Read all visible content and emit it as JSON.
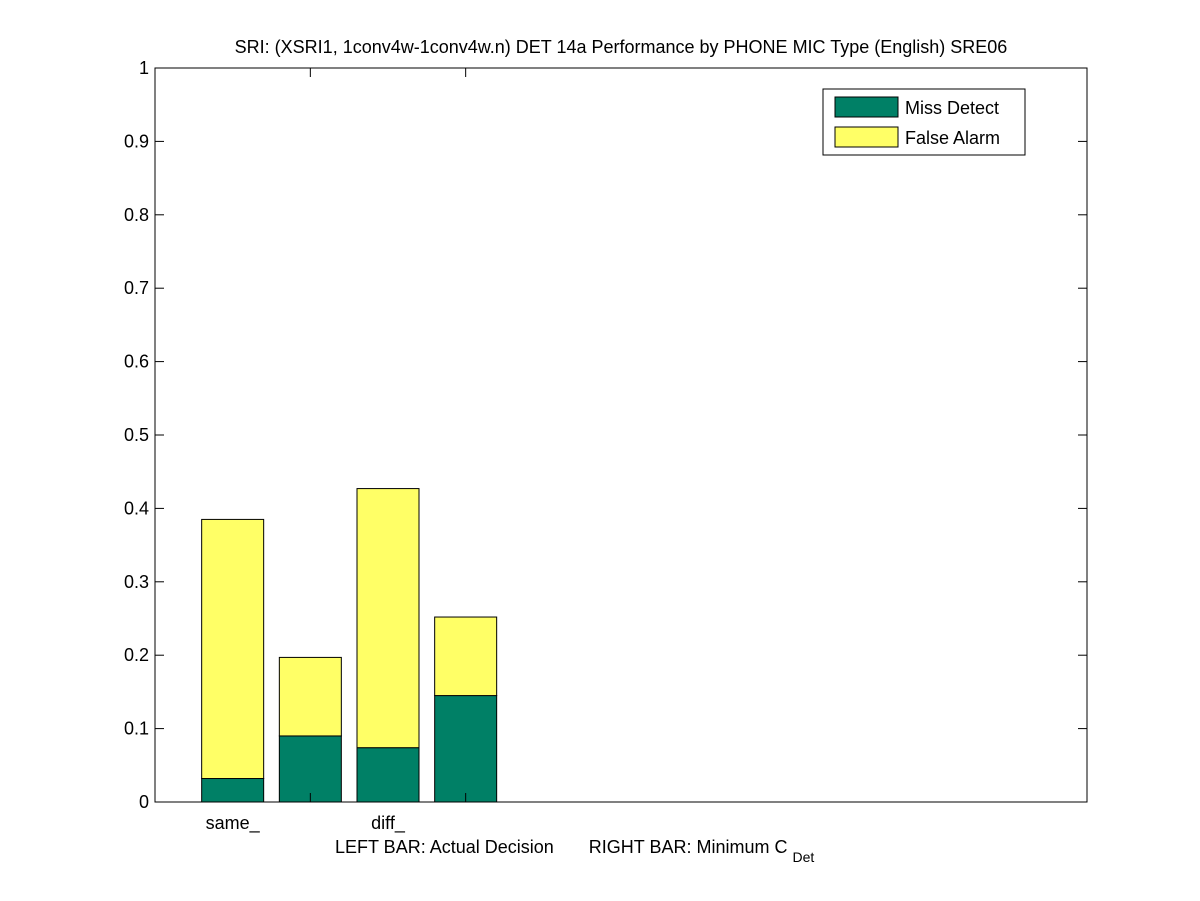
{
  "chart_data": {
    "type": "bar",
    "stacked": true,
    "title": "SRI: (XSRI1, 1conv4w-1conv4w.n) DET 14a Performance by PHONE MIC Type (English) SRE06",
    "xlabel": {
      "left": "LEFT BAR: Actual Decision",
      "right_main": "RIGHT BAR: Minimum C",
      "right_sub": "Det"
    },
    "ylabel": "",
    "ylim": [
      0,
      1
    ],
    "yticks": [
      0,
      0.1,
      0.2,
      0.3,
      0.4,
      0.5,
      0.6,
      0.7,
      0.8,
      0.9,
      1
    ],
    "ytick_labels": [
      "0",
      "0.1",
      "0.2",
      "0.3",
      "0.4",
      "0.5",
      "0.6",
      "0.7",
      "0.8",
      "0.9",
      "1"
    ],
    "xlim": [
      0,
      6
    ],
    "categories": [
      "same_",
      "diff_"
    ],
    "category_x": [
      0.5,
      1.5
    ],
    "divider_x": [
      1,
      2
    ],
    "bars": [
      {
        "category": "same_",
        "type": "actual",
        "x": 0.5,
        "miss": 0.032,
        "false_alarm": 0.353,
        "total": 0.385
      },
      {
        "category": "same_",
        "type": "minimum",
        "x": 1.0,
        "miss": 0.09,
        "false_alarm": 0.107,
        "total": 0.197
      },
      {
        "category": "diff_",
        "type": "actual",
        "x": 1.5,
        "miss": 0.074,
        "false_alarm": 0.353,
        "total": 0.427
      },
      {
        "category": "diff_",
        "type": "minimum",
        "x": 2.0,
        "miss": 0.145,
        "false_alarm": 0.107,
        "total": 0.252
      }
    ],
    "series": [
      {
        "name": "Miss Detect",
        "color": "#008066"
      },
      {
        "name": "False Alarm",
        "color": "#FFFF66"
      }
    ],
    "legend_position": "top-right",
    "grid": false
  }
}
